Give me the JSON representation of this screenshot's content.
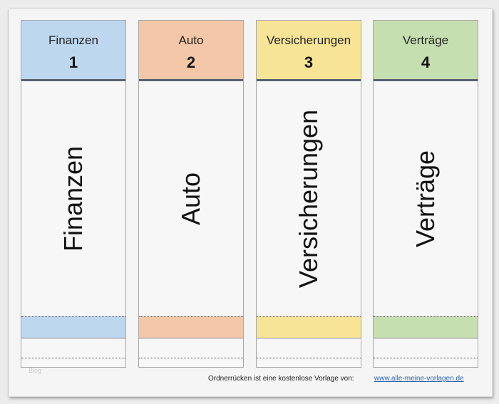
{
  "spines": [
    {
      "title": "Finanzen",
      "number": "1",
      "label": "Finanzen",
      "color": "#bdd7ee"
    },
    {
      "title": "Auto",
      "number": "2",
      "label": "Auto",
      "color": "#f4c7a8"
    },
    {
      "title": "Versicherungen",
      "number": "3",
      "label": "Versicherungen",
      "color": "#f8e497"
    },
    {
      "title": "Verträge",
      "number": "4",
      "label": "Verträge",
      "color": "#c6dfb0"
    }
  ],
  "watermark": "Blog",
  "footer": {
    "credit": "Ordnerrücken ist eine kostenlose Vorlage von:",
    "link": "www.alle-meine-vorlagen.de"
  }
}
